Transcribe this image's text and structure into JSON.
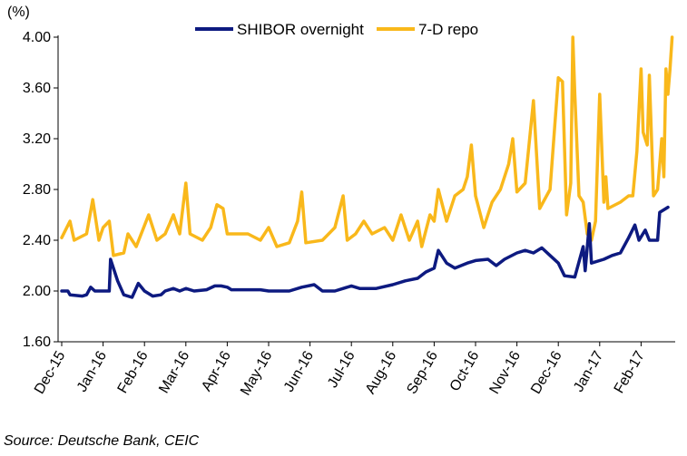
{
  "chart_data": {
    "type": "line",
    "unit_label": "(%)",
    "ylim": [
      1.6,
      4.0
    ],
    "yticks": [
      "1.60",
      "2.00",
      "2.40",
      "2.80",
      "3.20",
      "3.60",
      "4.00"
    ],
    "xticks": [
      "Dec-15",
      "Jan-16",
      "Feb-16",
      "Mar-16",
      "Apr-16",
      "May-16",
      "Jun-16",
      "Jul-16",
      "Aug-16",
      "Sep-16",
      "Oct-16",
      "Nov-16",
      "Dec-16",
      "Jan-17",
      "Feb-17"
    ],
    "grid": false,
    "legend_position": "top",
    "series": [
      {
        "name": "SHIBOR overnight",
        "color": "#0d1a80",
        "points": [
          [
            0,
            2.0
          ],
          [
            0.15,
            2.0
          ],
          [
            0.2,
            1.97
          ],
          [
            0.5,
            1.96
          ],
          [
            0.6,
            1.97
          ],
          [
            0.7,
            2.03
          ],
          [
            0.8,
            2.0
          ],
          [
            1.15,
            2.0
          ],
          [
            1.18,
            2.25
          ],
          [
            1.35,
            2.08
          ],
          [
            1.5,
            1.97
          ],
          [
            1.7,
            1.95
          ],
          [
            1.85,
            2.06
          ],
          [
            2.0,
            2.0
          ],
          [
            2.2,
            1.96
          ],
          [
            2.4,
            1.97
          ],
          [
            2.5,
            2.0
          ],
          [
            2.7,
            2.02
          ],
          [
            2.85,
            2.0
          ],
          [
            3.0,
            2.02
          ],
          [
            3.2,
            2.0
          ],
          [
            3.5,
            2.01
          ],
          [
            3.7,
            2.04
          ],
          [
            3.85,
            2.04
          ],
          [
            4.0,
            2.03
          ],
          [
            4.1,
            2.01
          ],
          [
            4.5,
            2.01
          ],
          [
            4.8,
            2.01
          ],
          [
            5.0,
            2.0
          ],
          [
            5.5,
            2.0
          ],
          [
            5.8,
            2.03
          ],
          [
            6.1,
            2.05
          ],
          [
            6.3,
            2.0
          ],
          [
            6.6,
            2.0
          ],
          [
            7.0,
            2.04
          ],
          [
            7.2,
            2.02
          ],
          [
            7.6,
            2.02
          ],
          [
            8.0,
            2.05
          ],
          [
            8.3,
            2.08
          ],
          [
            8.6,
            2.1
          ],
          [
            8.8,
            2.15
          ],
          [
            9.0,
            2.18
          ],
          [
            9.1,
            2.32
          ],
          [
            9.3,
            2.22
          ],
          [
            9.5,
            2.18
          ],
          [
            9.8,
            2.22
          ],
          [
            10.0,
            2.24
          ],
          [
            10.3,
            2.25
          ],
          [
            10.5,
            2.2
          ],
          [
            10.7,
            2.25
          ],
          [
            11.0,
            2.3
          ],
          [
            11.2,
            2.32
          ],
          [
            11.4,
            2.3
          ],
          [
            11.6,
            2.34
          ],
          [
            11.8,
            2.28
          ],
          [
            12.0,
            2.22
          ],
          [
            12.15,
            2.12
          ],
          [
            12.4,
            2.11
          ],
          [
            12.6,
            2.35
          ],
          [
            12.65,
            2.16
          ],
          [
            12.75,
            2.53
          ],
          [
            12.8,
            2.22
          ],
          [
            13.1,
            2.25
          ],
          [
            13.3,
            2.28
          ],
          [
            13.5,
            2.3
          ],
          [
            13.7,
            2.42
          ],
          [
            13.85,
            2.52
          ],
          [
            13.95,
            2.4
          ],
          [
            14.1,
            2.48
          ],
          [
            14.2,
            2.4
          ],
          [
            14.4,
            2.4
          ],
          [
            14.45,
            2.62
          ],
          [
            14.6,
            2.65
          ],
          [
            14.65,
            2.66
          ]
        ]
      },
      {
        "name": "7-D repo",
        "color": "#f9b81b",
        "points": [
          [
            0,
            2.42
          ],
          [
            0.2,
            2.55
          ],
          [
            0.3,
            2.4
          ],
          [
            0.6,
            2.45
          ],
          [
            0.75,
            2.72
          ],
          [
            0.9,
            2.4
          ],
          [
            1.0,
            2.5
          ],
          [
            1.15,
            2.55
          ],
          [
            1.25,
            2.28
          ],
          [
            1.5,
            2.3
          ],
          [
            1.6,
            2.45
          ],
          [
            1.8,
            2.35
          ],
          [
            2.1,
            2.6
          ],
          [
            2.3,
            2.4
          ],
          [
            2.5,
            2.45
          ],
          [
            2.7,
            2.6
          ],
          [
            2.85,
            2.45
          ],
          [
            3.0,
            2.85
          ],
          [
            3.1,
            2.45
          ],
          [
            3.4,
            2.4
          ],
          [
            3.6,
            2.5
          ],
          [
            3.75,
            2.68
          ],
          [
            3.9,
            2.65
          ],
          [
            4.0,
            2.45
          ],
          [
            4.5,
            2.45
          ],
          [
            4.8,
            2.4
          ],
          [
            5.0,
            2.5
          ],
          [
            5.2,
            2.35
          ],
          [
            5.5,
            2.38
          ],
          [
            5.7,
            2.55
          ],
          [
            5.8,
            2.78
          ],
          [
            5.9,
            2.38
          ],
          [
            6.3,
            2.4
          ],
          [
            6.6,
            2.5
          ],
          [
            6.8,
            2.75
          ],
          [
            6.9,
            2.4
          ],
          [
            7.1,
            2.45
          ],
          [
            7.3,
            2.55
          ],
          [
            7.5,
            2.45
          ],
          [
            7.8,
            2.5
          ],
          [
            8.0,
            2.4
          ],
          [
            8.2,
            2.6
          ],
          [
            8.4,
            2.4
          ],
          [
            8.6,
            2.55
          ],
          [
            8.7,
            2.35
          ],
          [
            8.9,
            2.6
          ],
          [
            9.0,
            2.55
          ],
          [
            9.1,
            2.8
          ],
          [
            9.3,
            2.55
          ],
          [
            9.5,
            2.75
          ],
          [
            9.7,
            2.8
          ],
          [
            9.8,
            2.9
          ],
          [
            9.9,
            3.15
          ],
          [
            10.0,
            2.75
          ],
          [
            10.2,
            2.5
          ],
          [
            10.4,
            2.7
          ],
          [
            10.6,
            2.8
          ],
          [
            10.8,
            3.0
          ],
          [
            10.9,
            3.2
          ],
          [
            11.0,
            2.78
          ],
          [
            11.2,
            2.85
          ],
          [
            11.4,
            3.5
          ],
          [
            11.55,
            2.65
          ],
          [
            11.8,
            2.8
          ],
          [
            12.0,
            3.68
          ],
          [
            12.1,
            3.65
          ],
          [
            12.2,
            2.6
          ],
          [
            12.3,
            2.85
          ],
          [
            12.35,
            4.0
          ],
          [
            12.4,
            3.55
          ],
          [
            12.5,
            2.75
          ],
          [
            12.6,
            2.7
          ],
          [
            12.7,
            2.45
          ],
          [
            12.8,
            2.4
          ],
          [
            12.9,
            2.55
          ],
          [
            13.0,
            3.55
          ],
          [
            13.1,
            2.7
          ],
          [
            13.15,
            2.9
          ],
          [
            13.2,
            2.65
          ],
          [
            13.5,
            2.7
          ],
          [
            13.7,
            2.75
          ],
          [
            13.8,
            2.75
          ],
          [
            13.9,
            3.1
          ],
          [
            14.0,
            3.75
          ],
          [
            14.05,
            3.25
          ],
          [
            14.15,
            3.15
          ],
          [
            14.2,
            3.7
          ],
          [
            14.3,
            2.75
          ],
          [
            14.4,
            2.8
          ],
          [
            14.5,
            3.2
          ],
          [
            14.55,
            2.9
          ],
          [
            14.6,
            3.75
          ],
          [
            14.65,
            3.55
          ],
          [
            14.7,
            3.75
          ],
          [
            14.75,
            4.0
          ]
        ]
      }
    ]
  },
  "source": "Source: Deutsche Bank, CEIC"
}
